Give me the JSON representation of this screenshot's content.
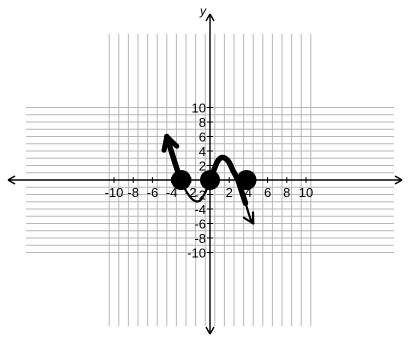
{
  "chart_data": {
    "type": "line",
    "title": "",
    "xlabel": "",
    "ylabel": "y",
    "xlim": [
      -10,
      10
    ],
    "ylim": [
      -10,
      10
    ],
    "grid": true,
    "x_tick_labels": [
      "-10",
      "-8",
      "-6",
      "-4",
      "-2",
      "2",
      "4",
      "6",
      "8",
      "10"
    ],
    "y_tick_labels": [
      "10",
      "8",
      "6",
      "4",
      "2",
      "-2",
      "-4",
      "-6",
      "-8",
      "-10"
    ],
    "curve": {
      "x": [
        -4.5,
        -3.8,
        -3.2,
        -2.5,
        -1.8,
        -1.1,
        -0.6,
        -0.2,
        0.3,
        0.8,
        1.3,
        1.9,
        2.4,
        2.9,
        3.3,
        3.7,
        4.2,
        4.5
      ],
      "y": [
        6.0,
        3.0,
        0.5,
        -1.5,
        -2.7,
        -2.9,
        -2.0,
        -0.8,
        1.0,
        2.6,
        3.1,
        2.6,
        1.3,
        0.0,
        -1.6,
        -3.2,
        -5.3,
        -6.0
      ],
      "thick_segments": [
        [
          -4.5,
          -3.0
        ],
        [
          0.0,
          3.8
        ]
      ],
      "arrows": [
        {
          "x": -4.5,
          "y": 6.0,
          "style": "open"
        },
        {
          "x": 4.5,
          "y": -6.0,
          "style": "simple"
        }
      ]
    },
    "points": [
      {
        "x": -3,
        "y": 0
      },
      {
        "x": 0,
        "y": 0
      },
      {
        "x": 3.8,
        "y": 0
      }
    ]
  }
}
